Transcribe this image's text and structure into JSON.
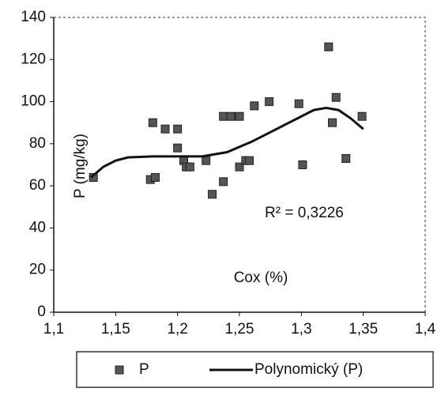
{
  "chart_data": {
    "type": "scatter",
    "x_label": "Cox (%)",
    "y_label": "P (mg/kg)",
    "annotation": "R² = 0,3226",
    "xlim": [
      1.1,
      1.4
    ],
    "xticks": [
      {
        "value": 1.1,
        "label": "1,1"
      },
      {
        "value": 1.15,
        "label": "1,15"
      },
      {
        "value": 1.2,
        "label": "1,2"
      },
      {
        "value": 1.25,
        "label": "1,25"
      },
      {
        "value": 1.3,
        "label": "1,3"
      },
      {
        "value": 1.35,
        "label": "1,35"
      },
      {
        "value": 1.4,
        "label": "1,4"
      }
    ],
    "ylim": [
      0,
      140
    ],
    "yticks": [
      0,
      20,
      40,
      60,
      80,
      100,
      120,
      140
    ],
    "series": [
      {
        "name": "P",
        "color": "#555555",
        "x": [
          1.132,
          1.18,
          1.19,
          1.2,
          1.2,
          1.178,
          1.182,
          1.205,
          1.207,
          1.21,
          1.223,
          1.228,
          1.237,
          1.237,
          1.243,
          1.25,
          1.25,
          1.255,
          1.258,
          1.262,
          1.274,
          1.298,
          1.301,
          1.322,
          1.328,
          1.325,
          1.336,
          1.349
        ],
        "values": [
          64,
          90,
          87,
          87,
          78,
          63,
          64,
          72,
          69,
          69,
          72,
          56,
          62,
          93,
          93,
          93,
          69,
          72,
          72,
          98,
          100,
          99,
          70,
          126,
          102,
          90,
          73,
          93
        ]
      },
      {
        "name": "Polynomický (P)",
        "color": "#111111",
        "line": true,
        "x": [
          1.13,
          1.14,
          1.15,
          1.16,
          1.18,
          1.2,
          1.22,
          1.24,
          1.26,
          1.28,
          1.3,
          1.31,
          1.32,
          1.33,
          1.34,
          1.35
        ],
        "values": [
          64,
          69,
          72,
          73.5,
          74,
          74,
          74,
          76,
          81,
          87,
          93,
          96,
          97,
          96,
          92,
          87
        ]
      }
    ],
    "legend": "bottom"
  }
}
